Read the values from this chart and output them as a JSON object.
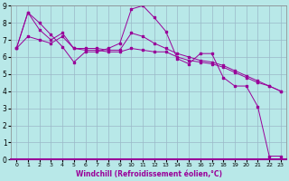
{
  "xlabel": "Windchill (Refroidissement éolien,°C)",
  "bg_color": "#b8e8e8",
  "grid_color": "#9ab8c8",
  "line_color": "#990099",
  "xlim": [
    0,
    23
  ],
  "ylim": [
    0,
    9
  ],
  "xticks": [
    0,
    1,
    2,
    3,
    4,
    5,
    6,
    7,
    8,
    9,
    10,
    11,
    12,
    13,
    14,
    15,
    16,
    17,
    18,
    19,
    20,
    21,
    22,
    23
  ],
  "yticks": [
    0,
    1,
    2,
    3,
    4,
    5,
    6,
    7,
    8,
    9
  ],
  "series1_x": [
    0,
    1,
    2,
    3,
    4,
    5,
    6,
    7,
    8,
    9,
    10,
    11,
    12,
    13,
    14,
    15,
    16,
    17,
    18,
    19,
    20,
    21,
    22,
    23
  ],
  "series1_y": [
    6.5,
    8.6,
    8.0,
    7.3,
    6.6,
    5.7,
    6.3,
    6.3,
    6.5,
    6.8,
    8.8,
    9.0,
    8.3,
    7.5,
    5.9,
    5.6,
    6.2,
    6.2,
    4.8,
    4.3,
    4.3,
    3.1,
    0.2,
    0.2
  ],
  "series2_x": [
    0,
    1,
    2,
    3,
    4,
    5,
    6,
    7,
    8,
    9,
    10,
    11,
    12,
    13,
    14,
    15,
    16,
    17,
    18,
    19,
    20,
    21,
    22,
    23
  ],
  "series2_y": [
    6.5,
    7.2,
    7.0,
    6.8,
    7.2,
    6.5,
    6.4,
    6.4,
    6.3,
    6.3,
    6.5,
    6.4,
    6.3,
    6.3,
    6.0,
    5.8,
    5.7,
    5.6,
    5.4,
    5.1,
    4.8,
    4.5,
    4.3,
    4.0
  ],
  "series3_x": [
    0,
    1,
    2,
    3,
    4,
    5,
    6,
    7,
    8,
    9,
    10,
    11,
    12,
    13,
    14,
    15,
    16,
    17,
    18,
    19,
    20,
    21,
    22,
    23
  ],
  "series3_y": [
    6.5,
    8.6,
    7.6,
    7.0,
    7.4,
    6.5,
    6.5,
    6.5,
    6.4,
    6.4,
    7.4,
    7.2,
    6.8,
    6.5,
    6.2,
    6.0,
    5.8,
    5.7,
    5.5,
    5.2,
    4.9,
    4.6,
    4.3,
    4.0
  ]
}
